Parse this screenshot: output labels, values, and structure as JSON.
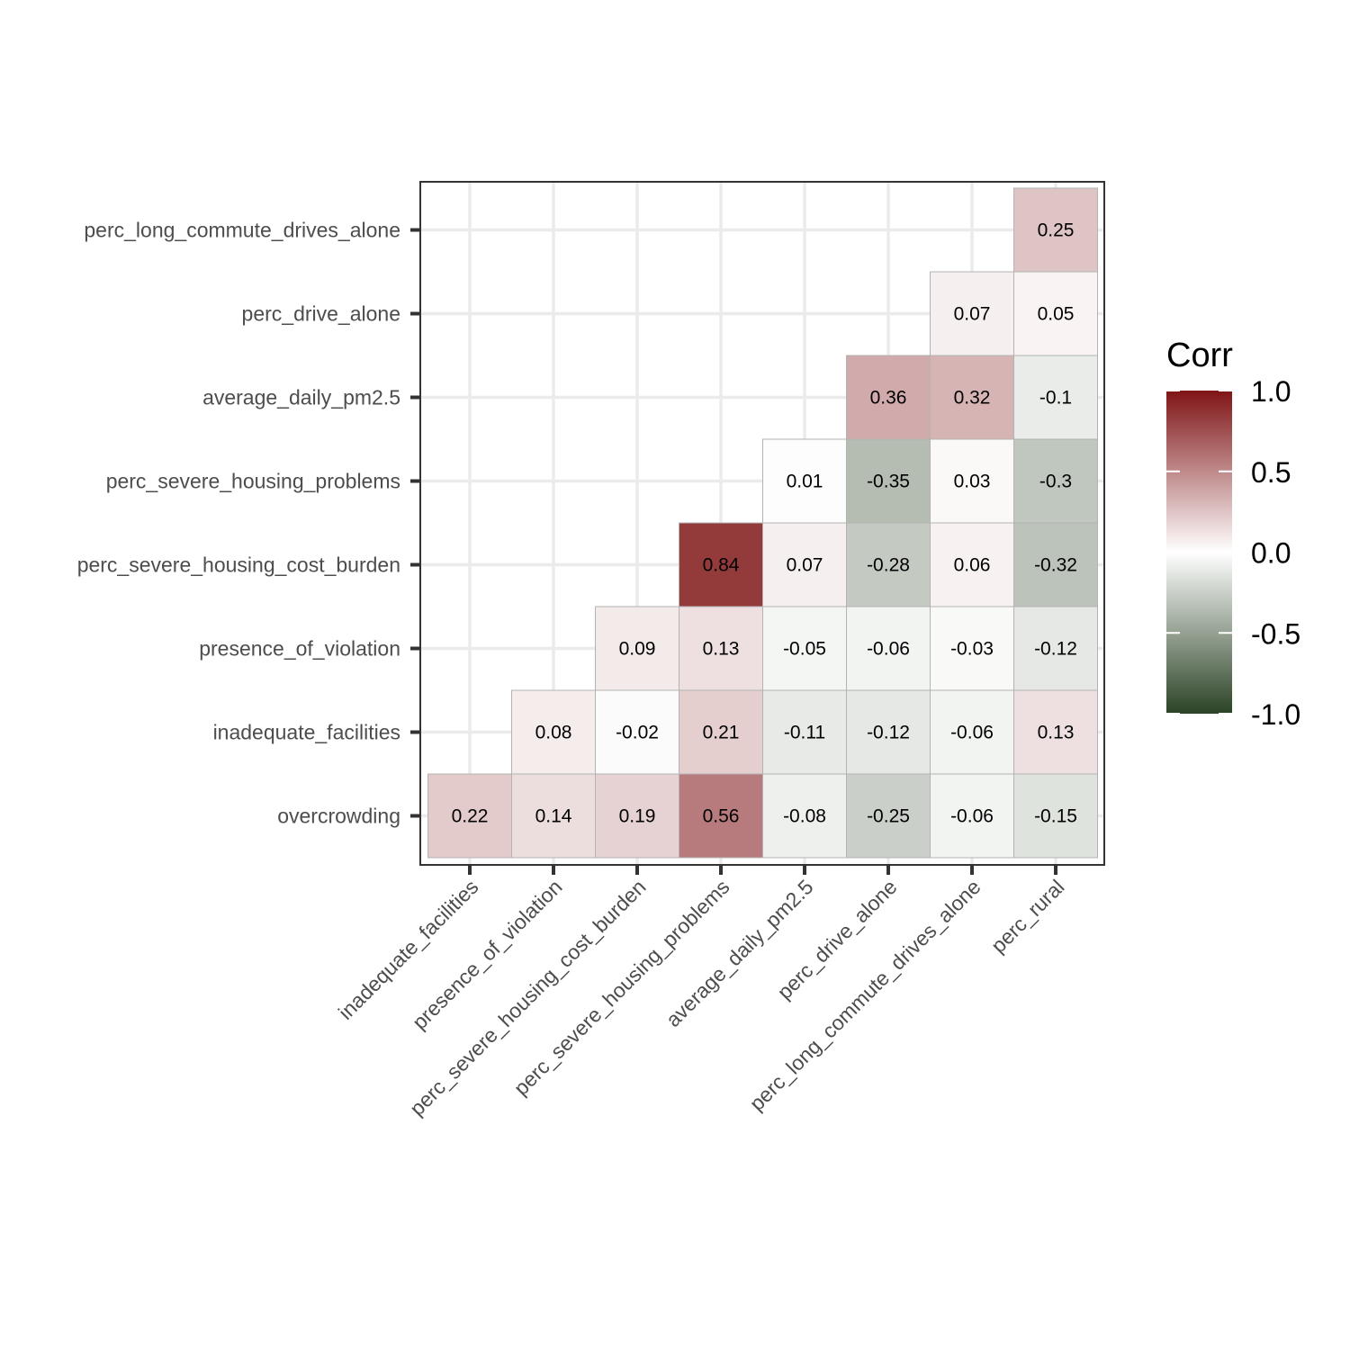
{
  "chart_data": {
    "type": "heatmap",
    "x_categories": [
      "inadequate_facilities",
      "presence_of_violation",
      "perc_severe_housing_cost_burden",
      "perc_severe_housing_problems",
      "average_daily_pm2.5",
      "perc_drive_alone",
      "perc_long_commute_drives_alone",
      "perc_rural"
    ],
    "y_categories": [
      "overcrowding",
      "inadequate_facilities",
      "presence_of_violation",
      "perc_severe_housing_cost_burden",
      "perc_severe_housing_problems",
      "average_daily_pm2.5",
      "perc_drive_alone",
      "perc_long_commute_drives_alone"
    ],
    "cells": [
      {
        "x": "inadequate_facilities",
        "y": "overcrowding",
        "value": 0.22,
        "label": "0.22"
      },
      {
        "x": "presence_of_violation",
        "y": "overcrowding",
        "value": 0.14,
        "label": "0.14"
      },
      {
        "x": "perc_severe_housing_cost_burden",
        "y": "overcrowding",
        "value": 0.19,
        "label": "0.19"
      },
      {
        "x": "perc_severe_housing_problems",
        "y": "overcrowding",
        "value": 0.56,
        "label": "0.56"
      },
      {
        "x": "average_daily_pm2.5",
        "y": "overcrowding",
        "value": -0.08,
        "label": "-0.08"
      },
      {
        "x": "perc_drive_alone",
        "y": "overcrowding",
        "value": -0.25,
        "label": "-0.25"
      },
      {
        "x": "perc_long_commute_drives_alone",
        "y": "overcrowding",
        "value": -0.06,
        "label": "-0.06"
      },
      {
        "x": "perc_rural",
        "y": "overcrowding",
        "value": -0.15,
        "label": "-0.15"
      },
      {
        "x": "presence_of_violation",
        "y": "inadequate_facilities",
        "value": 0.08,
        "label": "0.08"
      },
      {
        "x": "perc_severe_housing_cost_burden",
        "y": "inadequate_facilities",
        "value": -0.02,
        "label": "-0.02"
      },
      {
        "x": "perc_severe_housing_problems",
        "y": "inadequate_facilities",
        "value": 0.21,
        "label": "0.21"
      },
      {
        "x": "average_daily_pm2.5",
        "y": "inadequate_facilities",
        "value": -0.11,
        "label": "-0.11"
      },
      {
        "x": "perc_drive_alone",
        "y": "inadequate_facilities",
        "value": -0.12,
        "label": "-0.12"
      },
      {
        "x": "perc_long_commute_drives_alone",
        "y": "inadequate_facilities",
        "value": -0.06,
        "label": "-0.06"
      },
      {
        "x": "perc_rural",
        "y": "inadequate_facilities",
        "value": 0.13,
        "label": "0.13"
      },
      {
        "x": "perc_severe_housing_cost_burden",
        "y": "presence_of_violation",
        "value": 0.09,
        "label": "0.09"
      },
      {
        "x": "perc_severe_housing_problems",
        "y": "presence_of_violation",
        "value": 0.13,
        "label": "0.13"
      },
      {
        "x": "average_daily_pm2.5",
        "y": "presence_of_violation",
        "value": -0.05,
        "label": "-0.05"
      },
      {
        "x": "perc_drive_alone",
        "y": "presence_of_violation",
        "value": -0.06,
        "label": "-0.06"
      },
      {
        "x": "perc_long_commute_drives_alone",
        "y": "presence_of_violation",
        "value": -0.03,
        "label": "-0.03"
      },
      {
        "x": "perc_rural",
        "y": "presence_of_violation",
        "value": -0.12,
        "label": "-0.12"
      },
      {
        "x": "perc_severe_housing_problems",
        "y": "perc_severe_housing_cost_burden",
        "value": 0.84,
        "label": "0.84"
      },
      {
        "x": "average_daily_pm2.5",
        "y": "perc_severe_housing_cost_burden",
        "value": 0.07,
        "label": "0.07"
      },
      {
        "x": "perc_drive_alone",
        "y": "perc_severe_housing_cost_burden",
        "value": -0.28,
        "label": "-0.28"
      },
      {
        "x": "perc_long_commute_drives_alone",
        "y": "perc_severe_housing_cost_burden",
        "value": 0.06,
        "label": "0.06"
      },
      {
        "x": "perc_rural",
        "y": "perc_severe_housing_cost_burden",
        "value": -0.32,
        "label": "-0.32"
      },
      {
        "x": "average_daily_pm2.5",
        "y": "perc_severe_housing_problems",
        "value": 0.01,
        "label": "0.01"
      },
      {
        "x": "perc_drive_alone",
        "y": "perc_severe_housing_problems",
        "value": -0.35,
        "label": "-0.35"
      },
      {
        "x": "perc_long_commute_drives_alone",
        "y": "perc_severe_housing_problems",
        "value": 0.03,
        "label": "0.03"
      },
      {
        "x": "perc_rural",
        "y": "perc_severe_housing_problems",
        "value": -0.3,
        "label": "-0.3"
      },
      {
        "x": "perc_drive_alone",
        "y": "average_daily_pm2.5",
        "value": 0.36,
        "label": "0.36"
      },
      {
        "x": "perc_long_commute_drives_alone",
        "y": "average_daily_pm2.5",
        "value": 0.32,
        "label": "0.32"
      },
      {
        "x": "perc_rural",
        "y": "average_daily_pm2.5",
        "value": -0.1,
        "label": "-0.1"
      },
      {
        "x": "perc_long_commute_drives_alone",
        "y": "perc_drive_alone",
        "value": 0.07,
        "label": "0.07"
      },
      {
        "x": "perc_rural",
        "y": "perc_drive_alone",
        "value": 0.05,
        "label": "0.05"
      },
      {
        "x": "perc_rural",
        "y": "perc_long_commute_drives_alone",
        "value": 0.25,
        "label": "0.25"
      }
    ],
    "grid": true,
    "legend": {
      "title": "Corr",
      "position": "right",
      "range": [
        -1.0,
        1.0
      ],
      "ticks": [
        1.0,
        0.5,
        0.0,
        -0.5,
        -1.0
      ],
      "tick_labels": [
        "1.0",
        "0.5",
        "0.0",
        "-0.5",
        "-1.0"
      ],
      "colors": {
        "low": "#2b4326",
        "mid": "#ffffff",
        "high": "#7f1416"
      }
    },
    "colors": {
      "panel_border": "#333333",
      "grid_line": "#ebebeb",
      "cell_border": "#b3b3b3",
      "tick_text": "#4d4d4d"
    }
  }
}
